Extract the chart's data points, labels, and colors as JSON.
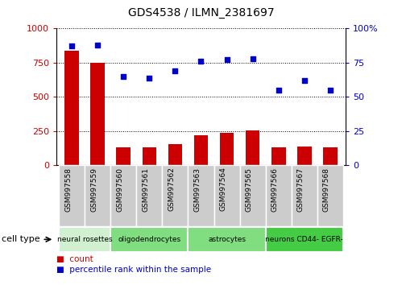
{
  "title": "GDS4538 / ILMN_2381697",
  "samples": [
    "GSM997558",
    "GSM997559",
    "GSM997560",
    "GSM997561",
    "GSM997562",
    "GSM997563",
    "GSM997564",
    "GSM997565",
    "GSM997566",
    "GSM997567",
    "GSM997568"
  ],
  "counts": [
    840,
    750,
    130,
    130,
    155,
    220,
    240,
    255,
    130,
    140,
    130
  ],
  "percentile": [
    87,
    88,
    65,
    64,
    69,
    76,
    77,
    78,
    55,
    62,
    55
  ],
  "cell_types": [
    {
      "label": "neural rosettes",
      "start": 0,
      "end": 2,
      "color": "#d0f0d0"
    },
    {
      "label": "oligodendrocytes",
      "start": 2,
      "end": 5,
      "color": "#80dd80"
    },
    {
      "label": "astrocytes",
      "start": 5,
      "end": 8,
      "color": "#80dd80"
    },
    {
      "label": "neurons CD44- EGFR-",
      "start": 8,
      "end": 11,
      "color": "#44cc44"
    }
  ],
  "bar_color": "#cc0000",
  "scatter_color": "#0000cc",
  "left_axis_color": "#cc0000",
  "right_axis_color": "#0000cc",
  "ylim_left": [
    0,
    1000
  ],
  "ylim_right": [
    0,
    100
  ],
  "yticks_left": [
    0,
    250,
    500,
    750,
    1000
  ],
  "yticks_right": [
    0,
    25,
    50,
    75,
    100
  ],
  "ytick_labels_left": [
    "0",
    "250",
    "500",
    "750",
    "1000"
  ],
  "ytick_labels_right": [
    "0",
    "25",
    "50",
    "75",
    "100%"
  ],
  "legend_count_label": "count",
  "legend_pct_label": "percentile rank within the sample",
  "cell_type_label": "cell type",
  "bg_color": "#ffffff",
  "xticklabel_bg": "#cccccc",
  "spine_color": "#000000"
}
